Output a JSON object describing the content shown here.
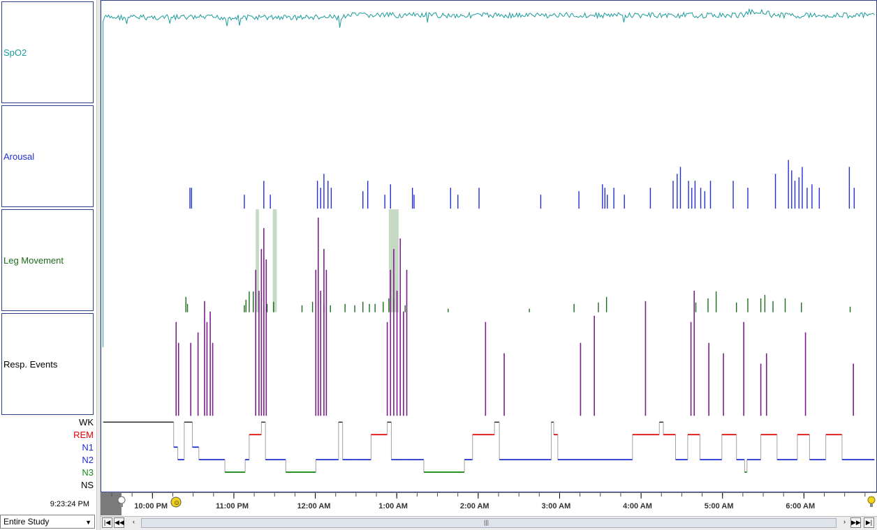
{
  "channels": [
    {
      "label": "SpO2",
      "color": "#1a9a9a"
    },
    {
      "label": "Arousal",
      "color": "#1f2fd0"
    },
    {
      "label": "Leg Movement",
      "color": "#1a6b1a"
    },
    {
      "label": "Resp. Events",
      "color": "#000000"
    }
  ],
  "stages": [
    {
      "label": "WK",
      "color": "#000000"
    },
    {
      "label": "REM",
      "color": "#e00000"
    },
    {
      "label": "N1",
      "color": "#1f2fd0"
    },
    {
      "label": "N2",
      "color": "#1f2fd0"
    },
    {
      "label": "N3",
      "color": "#1a8a1a"
    },
    {
      "label": "NS",
      "color": "#000000"
    }
  ],
  "cursor_time": "9:23:24 PM",
  "scope": {
    "selected": "Entire Study"
  },
  "colors": {
    "spo2": "#1a9a9a",
    "arousal": "#1f2fd0",
    "leg": "#1a6b1a",
    "resp": "#7a1f8a",
    "resp_highlight": "#9fbf9f",
    "stage_wake": "#000000",
    "stage_rem": "#e00000",
    "stage_n2": "#1f2fd0",
    "stage_n3": "#1a8a1a",
    "stage_transition": "#a0a0a0"
  },
  "chart_data": {
    "type": "line",
    "x_unit": "hours since 9:23 PM (study start)",
    "xlim": [
      0,
      9.5
    ],
    "time_ticks": [
      "10:00 PM",
      "11:00 PM",
      "12:00 AM",
      "1:00 AM",
      "2:00 AM",
      "3:00 AM",
      "4:00 AM",
      "5:00 AM",
      "6:00 AM"
    ],
    "time_tick_hours": [
      0.62,
      1.62,
      2.62,
      3.62,
      4.62,
      5.62,
      6.62,
      7.62,
      8.62
    ],
    "hypnogram": [
      {
        "start": 0.0,
        "end": 0.87,
        "stage": "WK"
      },
      {
        "start": 0.87,
        "end": 0.92,
        "stage": "N1"
      },
      {
        "start": 0.92,
        "end": 1.0,
        "stage": "N2"
      },
      {
        "start": 1.0,
        "end": 1.1,
        "stage": "WK"
      },
      {
        "start": 1.1,
        "end": 1.18,
        "stage": "N1"
      },
      {
        "start": 1.18,
        "end": 1.5,
        "stage": "N2"
      },
      {
        "start": 1.5,
        "end": 1.75,
        "stage": "N3"
      },
      {
        "start": 1.75,
        "end": 1.8,
        "stage": "N2"
      },
      {
        "start": 1.8,
        "end": 1.95,
        "stage": "REM"
      },
      {
        "start": 1.95,
        "end": 2.0,
        "stage": "WK"
      },
      {
        "start": 2.0,
        "end": 2.25,
        "stage": "N2"
      },
      {
        "start": 2.25,
        "end": 2.62,
        "stage": "N3"
      },
      {
        "start": 2.62,
        "end": 2.9,
        "stage": "N2"
      },
      {
        "start": 2.9,
        "end": 2.95,
        "stage": "WK"
      },
      {
        "start": 2.95,
        "end": 3.1,
        "stage": "N2"
      },
      {
        "start": 3.1,
        "end": 3.3,
        "stage": "N2"
      },
      {
        "start": 3.3,
        "end": 3.5,
        "stage": "REM"
      },
      {
        "start": 3.5,
        "end": 3.55,
        "stage": "WK"
      },
      {
        "start": 3.55,
        "end": 3.7,
        "stage": "N2"
      },
      {
        "start": 3.7,
        "end": 3.95,
        "stage": "N2"
      },
      {
        "start": 3.95,
        "end": 4.45,
        "stage": "N3"
      },
      {
        "start": 4.45,
        "end": 4.55,
        "stage": "N2"
      },
      {
        "start": 4.55,
        "end": 4.82,
        "stage": "REM"
      },
      {
        "start": 4.82,
        "end": 4.88,
        "stage": "WK"
      },
      {
        "start": 4.88,
        "end": 5.52,
        "stage": "N2"
      },
      {
        "start": 5.52,
        "end": 5.55,
        "stage": "WK"
      },
      {
        "start": 5.55,
        "end": 5.6,
        "stage": "REM"
      },
      {
        "start": 5.6,
        "end": 6.52,
        "stage": "N2"
      },
      {
        "start": 6.52,
        "end": 6.85,
        "stage": "REM"
      },
      {
        "start": 6.85,
        "end": 6.9,
        "stage": "WK"
      },
      {
        "start": 6.9,
        "end": 7.05,
        "stage": "REM"
      },
      {
        "start": 7.05,
        "end": 7.2,
        "stage": "N2"
      },
      {
        "start": 7.2,
        "end": 7.35,
        "stage": "REM"
      },
      {
        "start": 7.35,
        "end": 7.45,
        "stage": "N2"
      },
      {
        "start": 7.45,
        "end": 7.62,
        "stage": "N2"
      },
      {
        "start": 7.62,
        "end": 7.8,
        "stage": "REM"
      },
      {
        "start": 7.8,
        "end": 7.9,
        "stage": "N2"
      },
      {
        "start": 7.9,
        "end": 7.93,
        "stage": "N3"
      },
      {
        "start": 7.93,
        "end": 8.1,
        "stage": "N2"
      },
      {
        "start": 8.1,
        "end": 8.3,
        "stage": "REM"
      },
      {
        "start": 8.3,
        "end": 8.55,
        "stage": "N2"
      },
      {
        "start": 8.55,
        "end": 8.7,
        "stage": "REM"
      },
      {
        "start": 8.7,
        "end": 8.9,
        "stage": "N2"
      },
      {
        "start": 8.9,
        "end": 9.1,
        "stage": "REM"
      },
      {
        "start": 9.1,
        "end": 9.5,
        "stage": "N2"
      }
    ],
    "arousal_events": [
      1.07,
      1.09,
      1.74,
      1.98,
      2.06,
      2.64,
      2.68,
      2.72,
      2.77,
      2.81,
      3.2,
      3.26,
      3.47,
      3.54,
      3.81,
      3.83,
      4.28,
      4.37,
      4.63,
      5.39,
      5.86,
      6.15,
      6.18,
      6.21,
      6.29,
      6.42,
      6.74,
      7.02,
      7.07,
      7.11,
      7.21,
      7.25,
      7.29,
      7.36,
      7.41,
      7.48,
      7.76,
      7.94,
      8.28,
      8.44,
      8.48,
      8.52,
      8.57,
      8.61,
      8.67,
      8.73,
      8.82,
      9.19,
      9.25
    ],
    "arousal_heights": [
      0.3,
      0.3,
      0.2,
      0.4,
      0.2,
      0.4,
      0.3,
      0.5,
      0.4,
      0.3,
      0.25,
      0.4,
      0.2,
      0.35,
      0.3,
      0.2,
      0.3,
      0.2,
      0.3,
      0.2,
      0.25,
      0.35,
      0.3,
      0.2,
      0.3,
      0.2,
      0.3,
      0.4,
      0.5,
      0.6,
      0.4,
      0.3,
      0.4,
      0.3,
      0.25,
      0.4,
      0.4,
      0.3,
      0.5,
      0.7,
      0.55,
      0.4,
      0.45,
      0.6,
      0.3,
      0.35,
      0.3,
      0.6,
      0.3
    ],
    "leg_events": [
      1.02,
      1.04,
      1.74,
      1.76,
      1.8,
      1.85,
      1.88,
      1.92,
      1.95,
      1.98,
      2.02,
      2.1,
      2.45,
      2.58,
      2.72,
      2.8,
      2.98,
      3.1,
      3.2,
      3.28,
      3.35,
      3.45,
      3.52,
      3.58,
      3.66,
      3.72,
      4.25,
      5.25,
      5.8,
      6.1,
      6.2,
      7.3,
      7.45,
      7.55,
      7.8,
      7.94,
      8.1,
      8.15,
      8.25,
      8.4,
      8.6,
      9.2
    ],
    "leg_heights": [
      0.22,
      0.12,
      0.1,
      0.18,
      0.3,
      0.3,
      0.25,
      0.28,
      0.2,
      0.1,
      0.12,
      0.15,
      0.1,
      0.15,
      0.12,
      0.1,
      0.12,
      0.1,
      0.15,
      0.12,
      0.12,
      0.15,
      0.2,
      0.18,
      0.12,
      0.1,
      0.05,
      0.05,
      0.12,
      0.14,
      0.22,
      0.14,
      0.2,
      0.3,
      0.14,
      0.2,
      0.2,
      0.25,
      0.16,
      0.2,
      0.14,
      0.08
    ],
    "leg_highlight_bands": [
      [
        1.88,
        1.92
      ],
      [
        2.09,
        2.14
      ],
      [
        3.52,
        3.64
      ]
    ],
    "resp_events": [
      0.9,
      0.93,
      1.08,
      1.17,
      1.25,
      1.28,
      1.32,
      1.35,
      1.88,
      1.92,
      1.95,
      1.98,
      2.01,
      2.62,
      2.65,
      2.68,
      2.72,
      2.75,
      3.5,
      3.54,
      3.58,
      3.62,
      3.66,
      3.7,
      3.74,
      4.71,
      4.94,
      5.88,
      6.05,
      6.68,
      7.24,
      7.28,
      7.46,
      7.64,
      7.89,
      8.1,
      8.17,
      8.65,
      9.24
    ],
    "resp_heights": [
      0.45,
      0.35,
      0.35,
      0.4,
      0.55,
      0.45,
      0.5,
      0.35,
      0.7,
      0.6,
      0.8,
      0.9,
      0.75,
      0.7,
      0.95,
      0.6,
      0.8,
      0.7,
      0.45,
      0.7,
      0.8,
      0.6,
      0.85,
      0.5,
      0.7,
      0.45,
      0.3,
      0.35,
      0.48,
      0.55,
      0.45,
      0.6,
      0.35,
      0.3,
      0.45,
      0.25,
      0.3,
      0.4,
      0.25
    ]
  }
}
